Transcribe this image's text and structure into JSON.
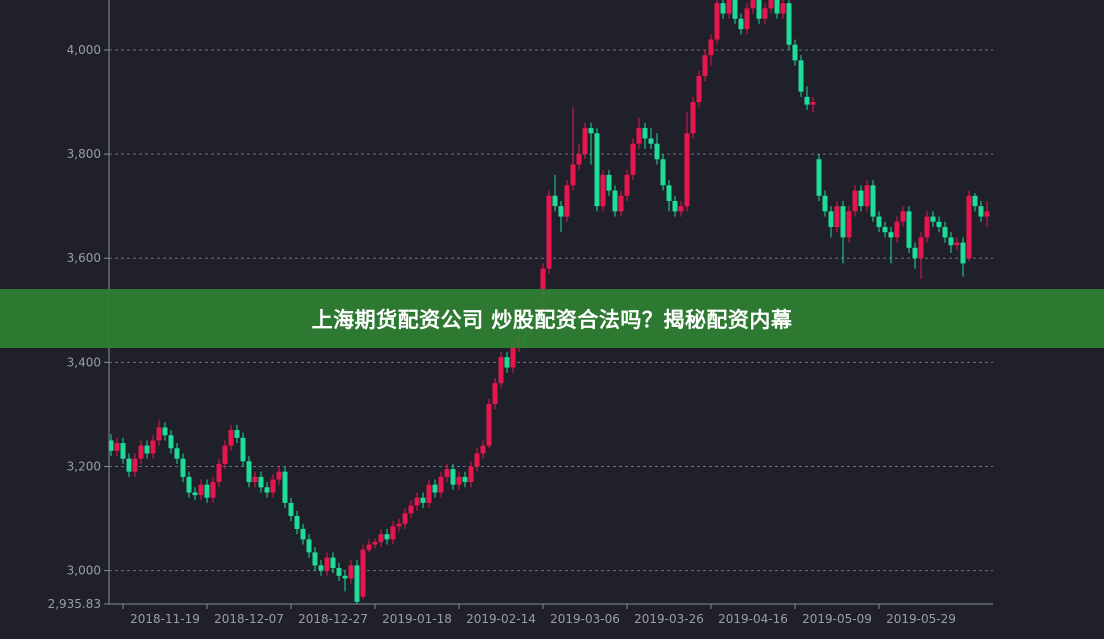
{
  "banner": {
    "title": "上海期货配资公司 炒股配资合法吗？揭秘配资内幕"
  },
  "colors": {
    "background": "#1f2029",
    "up": "#e8164f",
    "down": "#1fdc9b",
    "grid": "#6e7080",
    "axis": "#8a8c99",
    "text": "#9a9cab",
    "banner": "#2e7d32"
  },
  "chart_data": {
    "type": "candlestick",
    "title": "",
    "ylim": [
      2935.83,
      4096
    ],
    "y_ticks": [
      {
        "value": 2935.83,
        "label": "2,935.83"
      },
      {
        "value": 3000,
        "label": "3,000"
      },
      {
        "value": 3200,
        "label": "3,200"
      },
      {
        "value": 3400,
        "label": "3,400"
      },
      {
        "value": 3600,
        "label": "3,600"
      },
      {
        "value": 3800,
        "label": "3,800"
      },
      {
        "value": 4000,
        "label": "4,000"
      }
    ],
    "grid": true,
    "x_ticks": [
      {
        "index": 2,
        "label": "2018-11-19"
      },
      {
        "index": 16,
        "label": "2018-12-07"
      },
      {
        "index": 30,
        "label": "2018-12-27"
      },
      {
        "index": 44,
        "label": "2019-01-18"
      },
      {
        "index": 58,
        "label": "2019-02-14"
      },
      {
        "index": 72,
        "label": "2019-03-06"
      },
      {
        "index": 86,
        "label": "2019-03-26"
      },
      {
        "index": 100,
        "label": "2019-04-16"
      },
      {
        "index": 114,
        "label": "2019-05-09"
      },
      {
        "index": 128,
        "label": "2019-05-29"
      }
    ],
    "candles_ohlc": [
      [
        3250,
        3262,
        3220,
        3230
      ],
      [
        3230,
        3255,
        3220,
        3245
      ],
      [
        3245,
        3255,
        3205,
        3215
      ],
      [
        3215,
        3225,
        3180,
        3190
      ],
      [
        3190,
        3225,
        3180,
        3215
      ],
      [
        3215,
        3250,
        3205,
        3240
      ],
      [
        3240,
        3250,
        3215,
        3225
      ],
      [
        3225,
        3260,
        3215,
        3250
      ],
      [
        3250,
        3290,
        3240,
        3275
      ],
      [
        3275,
        3285,
        3250,
        3260
      ],
      [
        3260,
        3270,
        3225,
        3235
      ],
      [
        3235,
        3245,
        3205,
        3215
      ],
      [
        3215,
        3225,
        3170,
        3180
      ],
      [
        3180,
        3190,
        3140,
        3150
      ],
      [
        3150,
        3160,
        3135,
        3145
      ],
      [
        3145,
        3175,
        3135,
        3165
      ],
      [
        3165,
        3175,
        3130,
        3140
      ],
      [
        3140,
        3180,
        3130,
        3170
      ],
      [
        3170,
        3215,
        3160,
        3205
      ],
      [
        3205,
        3250,
        3195,
        3240
      ],
      [
        3240,
        3280,
        3230,
        3270
      ],
      [
        3270,
        3280,
        3245,
        3255
      ],
      [
        3255,
        3265,
        3200,
        3210
      ],
      [
        3210,
        3220,
        3160,
        3170
      ],
      [
        3170,
        3190,
        3160,
        3180
      ],
      [
        3180,
        3190,
        3150,
        3160
      ],
      [
        3160,
        3170,
        3140,
        3150
      ],
      [
        3150,
        3185,
        3140,
        3175
      ],
      [
        3175,
        3200,
        3165,
        3190
      ],
      [
        3190,
        3200,
        3120,
        3130
      ],
      [
        3130,
        3140,
        3095,
        3105
      ],
      [
        3105,
        3115,
        3070,
        3080
      ],
      [
        3080,
        3090,
        3050,
        3060
      ],
      [
        3060,
        3070,
        3025,
        3035
      ],
      [
        3035,
        3045,
        3000,
        3010
      ],
      [
        3010,
        3020,
        2990,
        3000
      ],
      [
        3000,
        3035,
        2990,
        3025
      ],
      [
        3025,
        3035,
        2995,
        3005
      ],
      [
        3005,
        3015,
        2980,
        2990
      ],
      [
        2990,
        3000,
        2960,
        2985
      ],
      [
        2985,
        3020,
        2975,
        3010
      ],
      [
        3010,
        3020,
        2936,
        2940
      ],
      [
        2950,
        3050,
        2945,
        3040
      ],
      [
        3040,
        3060,
        3035,
        3050
      ],
      [
        3050,
        3062,
        3042,
        3055
      ],
      [
        3055,
        3080,
        3045,
        3070
      ],
      [
        3070,
        3080,
        3050,
        3060
      ],
      [
        3060,
        3095,
        3050,
        3085
      ],
      [
        3085,
        3100,
        3075,
        3090
      ],
      [
        3090,
        3120,
        3080,
        3110
      ],
      [
        3110,
        3135,
        3100,
        3125
      ],
      [
        3125,
        3150,
        3115,
        3140
      ],
      [
        3140,
        3150,
        3120,
        3130
      ],
      [
        3130,
        3175,
        3120,
        3165
      ],
      [
        3165,
        3175,
        3140,
        3150
      ],
      [
        3150,
        3190,
        3140,
        3180
      ],
      [
        3180,
        3205,
        3170,
        3195
      ],
      [
        3195,
        3205,
        3155,
        3165
      ],
      [
        3165,
        3190,
        3155,
        3180
      ],
      [
        3180,
        3190,
        3160,
        3170
      ],
      [
        3170,
        3210,
        3160,
        3200
      ],
      [
        3200,
        3235,
        3190,
        3225
      ],
      [
        3225,
        3250,
        3215,
        3240
      ],
      [
        3240,
        3330,
        3235,
        3320
      ],
      [
        3320,
        3370,
        3310,
        3360
      ],
      [
        3360,
        3420,
        3350,
        3410
      ],
      [
        3410,
        3420,
        3380,
        3390
      ],
      [
        3390,
        3440,
        3380,
        3430
      ],
      [
        3430,
        3460,
        3420,
        3450
      ],
      [
        3450,
        3460,
        3430,
        3440
      ],
      [
        3440,
        3470,
        3430,
        3460
      ],
      [
        3460,
        3530,
        3450,
        3480
      ],
      [
        3480,
        3590,
        3575,
        3580
      ],
      [
        3580,
        3730,
        3570,
        3720
      ],
      [
        3720,
        3760,
        3690,
        3700
      ],
      [
        3700,
        3710,
        3650,
        3680
      ],
      [
        3680,
        3750,
        3670,
        3740
      ],
      [
        3740,
        3890,
        3730,
        3780
      ],
      [
        3780,
        3820,
        3770,
        3800
      ],
      [
        3800,
        3860,
        3790,
        3850
      ],
      [
        3850,
        3860,
        3780,
        3840
      ],
      [
        3840,
        3850,
        3690,
        3700
      ],
      [
        3700,
        3770,
        3690,
        3760
      ],
      [
        3760,
        3770,
        3720,
        3730
      ],
      [
        3730,
        3740,
        3680,
        3690
      ],
      [
        3690,
        3730,
        3680,
        3720
      ],
      [
        3720,
        3770,
        3710,
        3760
      ],
      [
        3760,
        3830,
        3750,
        3820
      ],
      [
        3820,
        3870,
        3810,
        3850
      ],
      [
        3850,
        3860,
        3810,
        3830
      ],
      [
        3830,
        3850,
        3810,
        3820
      ],
      [
        3820,
        3840,
        3780,
        3790
      ],
      [
        3790,
        3800,
        3730,
        3740
      ],
      [
        3740,
        3750,
        3690,
        3710
      ],
      [
        3710,
        3720,
        3680,
        3690
      ],
      [
        3690,
        3710,
        3680,
        3700
      ],
      [
        3700,
        3880,
        3690,
        3840
      ],
      [
        3840,
        3910,
        3830,
        3900
      ],
      [
        3900,
        3960,
        3890,
        3950
      ],
      [
        3950,
        4000,
        3940,
        3990
      ],
      [
        3990,
        4030,
        3970,
        4020
      ],
      [
        4020,
        4100,
        4010,
        4090
      ],
      [
        4090,
        4100,
        4060,
        4070
      ],
      [
        4070,
        4120,
        4060,
        4110
      ],
      [
        4110,
        4120,
        4050,
        4060
      ],
      [
        4060,
        4070,
        4030,
        4040
      ],
      [
        4040,
        4090,
        4030,
        4080
      ],
      [
        4080,
        4110,
        4070,
        4100
      ],
      [
        4100,
        4110,
        4050,
        4060
      ],
      [
        4060,
        4090,
        4050,
        4080
      ],
      [
        4080,
        4110,
        4070,
        4100
      ],
      [
        4100,
        4110,
        4060,
        4070
      ],
      [
        4070,
        4100,
        4060,
        4090
      ],
      [
        4090,
        4100,
        4000,
        4010
      ],
      [
        4010,
        4020,
        3970,
        3980
      ],
      [
        3980,
        3990,
        3910,
        3920
      ],
      [
        3910,
        3930,
        3885,
        3895
      ],
      [
        3895,
        3910,
        3880,
        3900
      ],
      [
        3790,
        3800,
        3710,
        3720
      ],
      [
        3720,
        3730,
        3680,
        3690
      ],
      [
        3690,
        3700,
        3640,
        3660
      ],
      [
        3660,
        3710,
        3650,
        3700
      ],
      [
        3700,
        3710,
        3590,
        3640
      ],
      [
        3640,
        3700,
        3630,
        3690
      ],
      [
        3690,
        3740,
        3680,
        3730
      ],
      [
        3730,
        3740,
        3690,
        3700
      ],
      [
        3700,
        3750,
        3690,
        3740
      ],
      [
        3740,
        3750,
        3670,
        3680
      ],
      [
        3680,
        3690,
        3650,
        3660
      ],
      [
        3660,
        3670,
        3640,
        3650
      ],
      [
        3650,
        3660,
        3590,
        3640
      ],
      [
        3640,
        3680,
        3630,
        3670
      ],
      [
        3670,
        3700,
        3660,
        3690
      ],
      [
        3690,
        3700,
        3610,
        3620
      ],
      [
        3620,
        3630,
        3580,
        3600
      ],
      [
        3600,
        3650,
        3560,
        3640
      ],
      [
        3640,
        3690,
        3630,
        3680
      ],
      [
        3680,
        3690,
        3660,
        3670
      ],
      [
        3670,
        3680,
        3650,
        3660
      ],
      [
        3660,
        3670,
        3630,
        3640
      ],
      [
        3640,
        3650,
        3610,
        3625
      ],
      [
        3625,
        3640,
        3615,
        3630
      ],
      [
        3630,
        3640,
        3565,
        3590
      ],
      [
        3600,
        3730,
        3595,
        3720
      ],
      [
        3720,
        3725,
        3690,
        3700
      ],
      [
        3700,
        3710,
        3670,
        3680
      ],
      [
        3680,
        3710,
        3660,
        3690
      ]
    ]
  }
}
